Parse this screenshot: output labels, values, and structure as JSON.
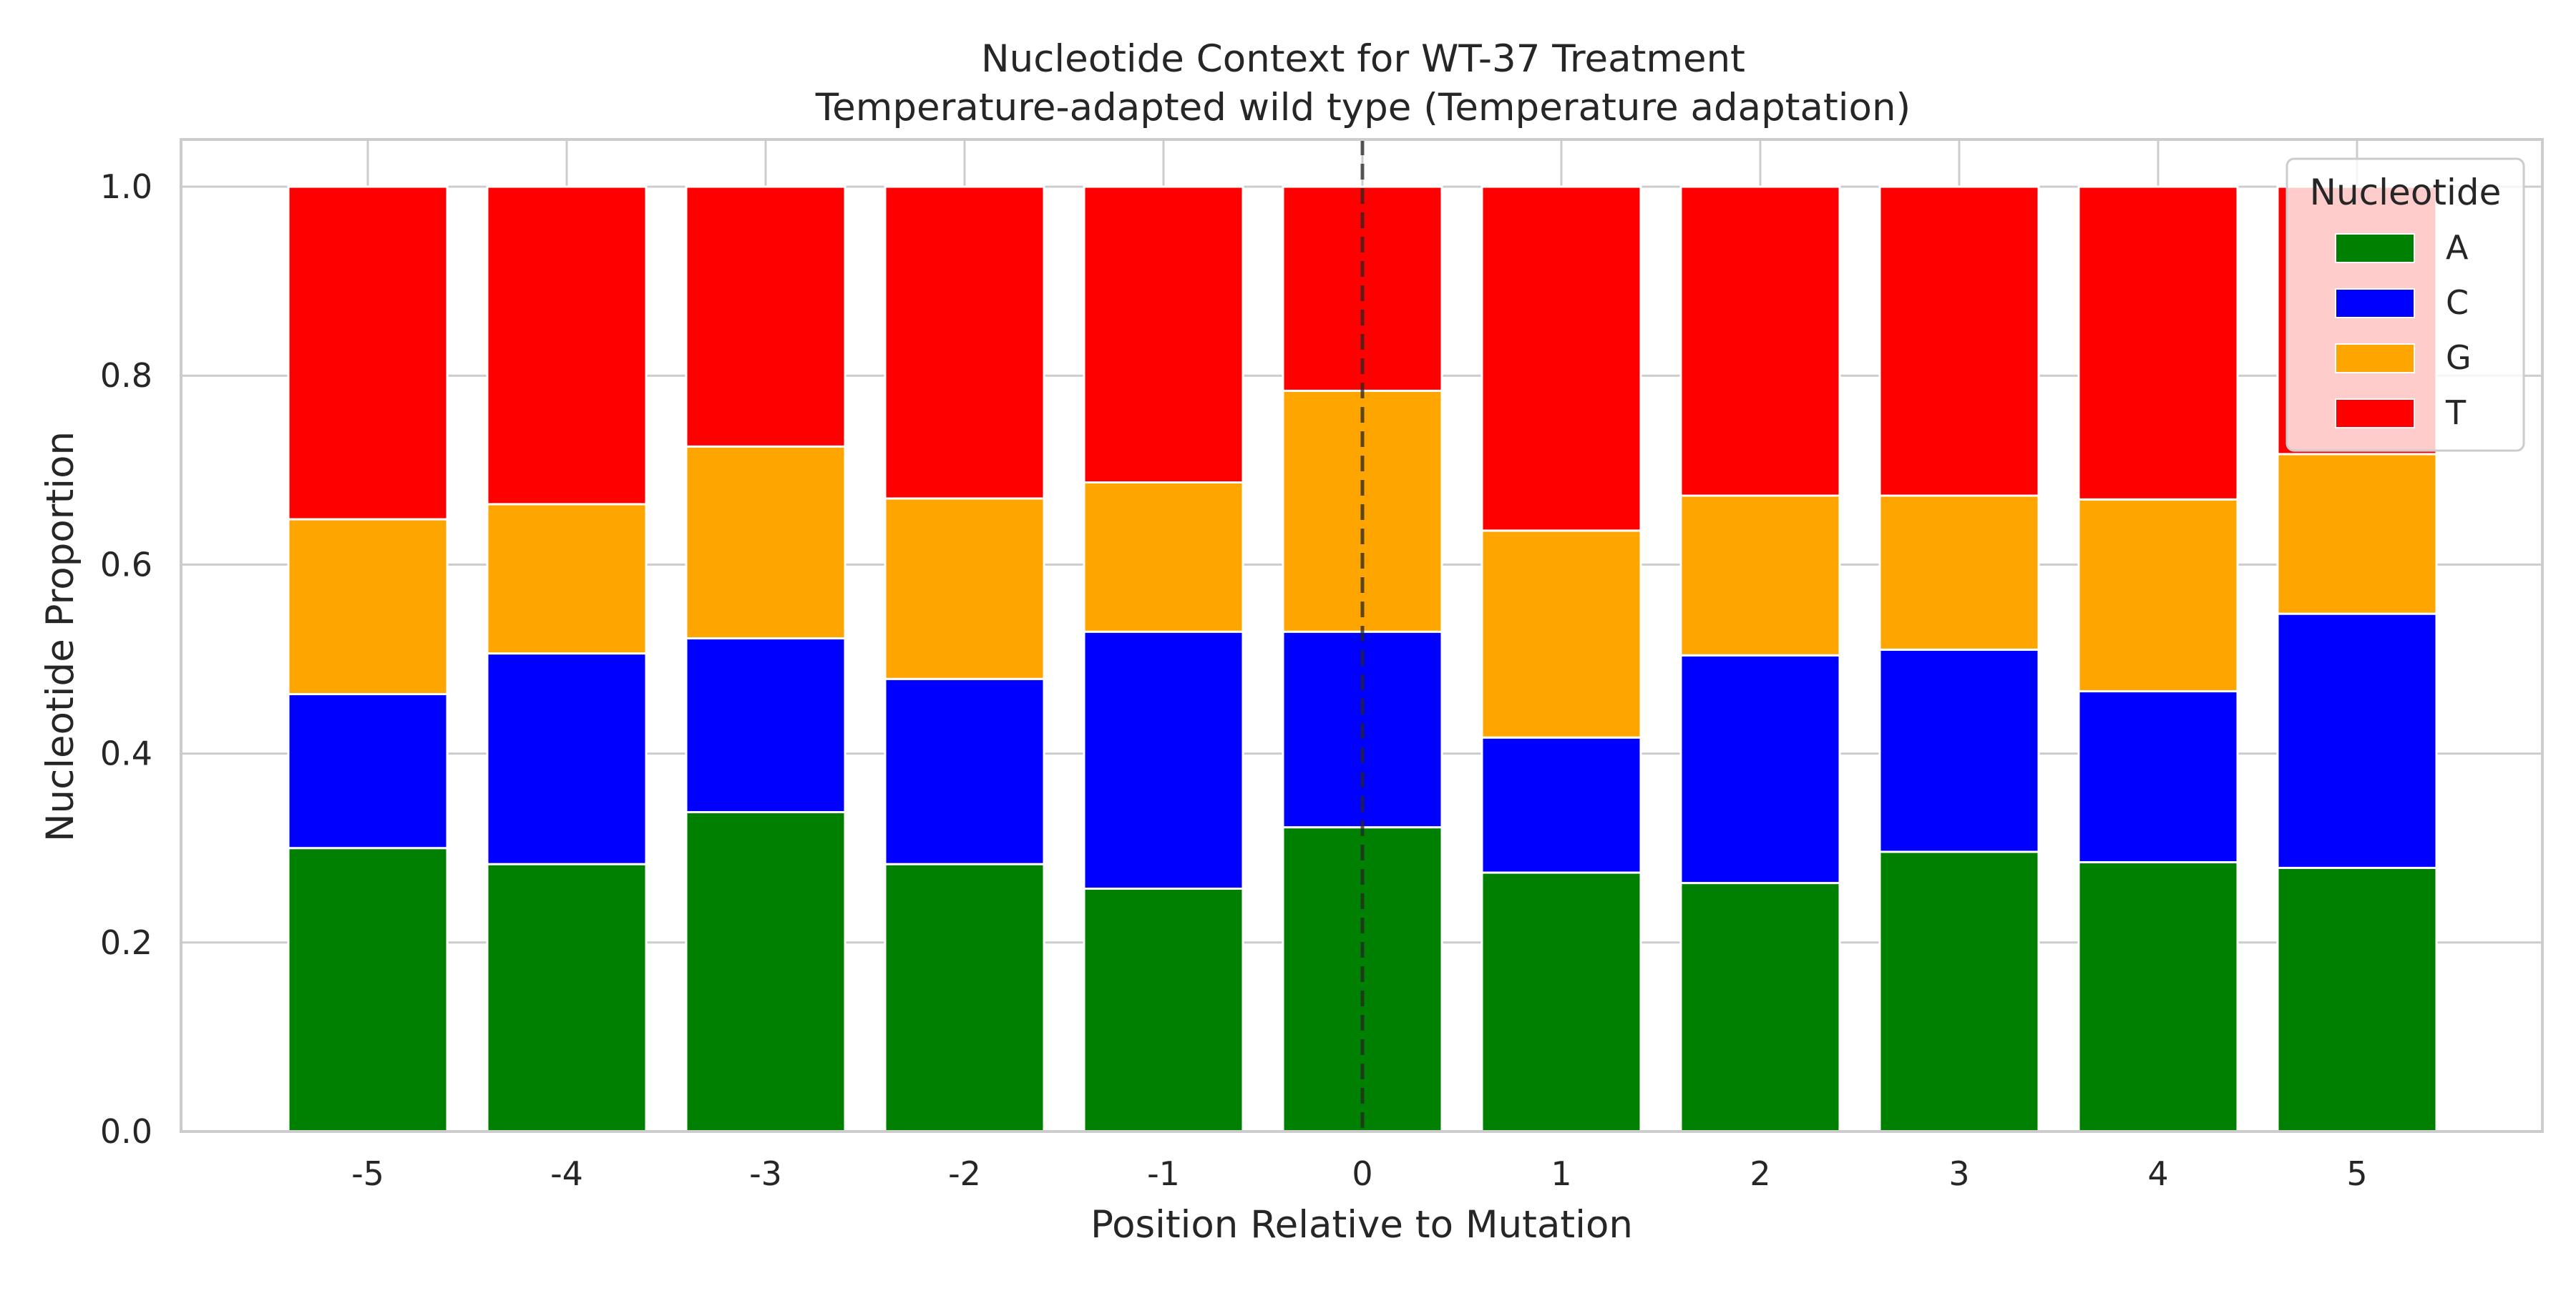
{
  "chart_data": {
    "type": "bar",
    "stacked": true,
    "title": "Nucleotide Context for WT-37 Treatment",
    "subtitle": "Temperature-adapted wild type (Temperature adaptation)",
    "xlabel": "Position Relative to Mutation",
    "ylabel": "Nucleotide Proportion",
    "categories": [
      "-5",
      "-4",
      "-3",
      "-2",
      "-1",
      "0",
      "1",
      "2",
      "3",
      "4",
      "5"
    ],
    "y_ticks": [
      "0.0",
      "0.2",
      "0.4",
      "0.6",
      "0.8",
      "1.0"
    ],
    "ylim": [
      0,
      1.05
    ],
    "grid": true,
    "reference_line": {
      "x": "0",
      "style": "dashed"
    },
    "legend": {
      "title": "Nucleotide",
      "placement": "top-right"
    },
    "series": [
      {
        "name": "A",
        "color": "#008000",
        "values": [
          0.3,
          0.283,
          0.338,
          0.283,
          0.257,
          0.322,
          0.274,
          0.263,
          0.296,
          0.285,
          0.279
        ]
      },
      {
        "name": "C",
        "color": "#0000ff",
        "values": [
          0.163,
          0.223,
          0.184,
          0.196,
          0.272,
          0.207,
          0.143,
          0.241,
          0.214,
          0.181,
          0.269
        ]
      },
      {
        "name": "G",
        "color": "#ffa500",
        "values": [
          0.185,
          0.158,
          0.203,
          0.191,
          0.158,
          0.255,
          0.219,
          0.169,
          0.163,
          0.203,
          0.169
        ]
      },
      {
        "name": "T",
        "color": "#ff0000",
        "values": [
          0.352,
          0.336,
          0.275,
          0.33,
          0.313,
          0.216,
          0.364,
          0.327,
          0.327,
          0.331,
          0.283
        ]
      }
    ]
  }
}
